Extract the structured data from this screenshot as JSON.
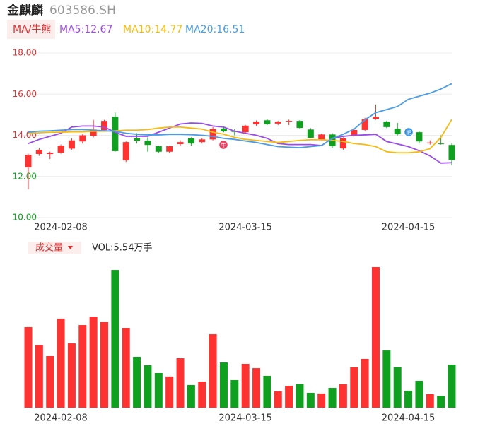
{
  "chart_data": {
    "type": "candlestick",
    "title": "金麒麟",
    "subtitle": "603586.SH",
    "indicator_label": "MA/牛熊",
    "volume_label": "成交量",
    "volume_text": "VOL:5.54万手",
    "annotations": [
      "牛",
      "熊"
    ],
    "up_color": "#ff3232",
    "down_color": "#10a020",
    "categories": [
      null,
      null,
      null,
      "2024-02-08",
      null,
      null,
      null,
      null,
      null,
      null,
      null,
      null,
      null,
      null,
      null,
      null,
      null,
      null,
      null,
      null,
      "2024-03-15",
      null,
      null,
      null,
      null,
      null,
      null,
      null,
      null,
      null,
      null,
      null,
      null,
      null,
      null,
      "2024-04-15",
      null,
      null,
      null,
      null
    ],
    "open": [
      12.44,
      13.09,
      13.09,
      13.16,
      13.35,
      13.7,
      13.98,
      14.25,
      14.9,
      12.78,
      13.85,
      13.74,
      13.47,
      13.2,
      13.57,
      13.85,
      13.67,
      13.8,
      14.33,
      14.2,
      14.15,
      14.53,
      14.73,
      14.57,
      14.68,
      14.7,
      14.28,
      13.8,
      14.04,
      13.36,
      13.98,
      14.26,
      14.8,
      14.67,
      14.32,
      14.3,
      14.15,
      13.62,
      13.6,
      13.53
    ],
    "close": [
      13.05,
      13.29,
      13.16,
      13.5,
      13.75,
      14.0,
      14.28,
      14.7,
      13.23,
      13.67,
      13.74,
      13.53,
      13.2,
      13.47,
      13.67,
      13.6,
      13.8,
      14.3,
      14.2,
      14.17,
      14.47,
      14.67,
      14.53,
      14.67,
      14.7,
      14.36,
      13.88,
      14.04,
      13.47,
      13.85,
      14.26,
      14.8,
      14.9,
      14.4,
      14.05,
      14.2,
      13.7,
      13.65,
      13.58,
      12.8
    ],
    "high": [
      13.1,
      13.4,
      13.2,
      13.55,
      13.85,
      14.05,
      14.75,
      14.75,
      15.1,
      13.7,
      14.1,
      13.9,
      13.5,
      13.5,
      13.75,
      13.9,
      13.85,
      14.4,
      14.45,
      14.3,
      14.5,
      14.72,
      14.78,
      14.7,
      14.76,
      14.74,
      14.35,
      14.08,
      14.1,
      13.9,
      14.3,
      14.85,
      15.5,
      14.7,
      14.6,
      14.35,
      14.2,
      13.75,
      14.0,
      13.6
    ],
    "low": [
      11.37,
      13.0,
      12.85,
      13.1,
      13.3,
      13.6,
      13.9,
      14.2,
      13.2,
      12.7,
      13.6,
      13.2,
      13.15,
      13.15,
      13.5,
      13.5,
      13.6,
      13.75,
      14.15,
      14.0,
      14.1,
      14.45,
      14.5,
      14.5,
      14.5,
      14.3,
      13.85,
      13.75,
      13.4,
      13.3,
      13.95,
      14.2,
      14.75,
      14.35,
      14.0,
      14.15,
      13.6,
      13.55,
      13.55,
      12.55
    ],
    "volume": [
      10.35,
      8.08,
      6.63,
      11.44,
      8.26,
      10.62,
      11.71,
      10.99,
      17.7,
      10.26,
      6.54,
      5.45,
      4.45,
      4.0,
      6.36,
      2.91,
      3.36,
      9.44,
      5.81,
      3.54,
      5.63,
      5.08,
      4.09,
      2.09,
      2.81,
      3.0,
      1.91,
      1.82,
      2.54,
      3.0,
      5.18,
      6.27,
      18.07,
      7.35,
      5.18,
      2.18,
      3.45,
      1.73,
      1.54,
      5.54
    ],
    "series": [
      {
        "name": "MA5:12.67",
        "color": "#9a4ce6",
        "values": [
          13.6,
          13.8,
          13.95,
          14.1,
          14.4,
          14.45,
          14.45,
          14.4,
          14.15,
          13.95,
          13.95,
          13.95,
          14.15,
          14.35,
          14.55,
          14.6,
          14.58,
          14.45,
          14.4,
          14.2,
          14.1,
          14.0,
          13.85,
          13.6,
          13.55,
          13.55,
          13.55,
          13.5,
          13.85,
          13.95,
          14.0,
          14.02,
          14.05,
          13.7,
          13.58,
          13.45,
          13.25,
          13.0,
          12.65,
          12.67
        ]
      },
      {
        "name": "MA10:14.77",
        "color": "#f5bb10",
        "values": [
          14.1,
          14.12,
          14.15,
          14.15,
          14.17,
          14.17,
          14.2,
          14.2,
          14.22,
          14.25,
          14.25,
          14.28,
          14.35,
          14.4,
          14.4,
          14.35,
          14.3,
          14.15,
          14.05,
          13.9,
          13.8,
          13.75,
          13.7,
          13.65,
          13.7,
          13.75,
          13.78,
          13.78,
          13.75,
          13.7,
          13.6,
          13.55,
          13.45,
          13.2,
          13.15,
          13.15,
          13.2,
          13.35,
          13.9,
          14.77
        ]
      },
      {
        "name": "MA20:16.51",
        "color": "#4a9de6",
        "values": [
          14.15,
          14.2,
          14.22,
          14.25,
          14.28,
          14.28,
          14.25,
          14.22,
          14.2,
          14.1,
          14.05,
          14.02,
          14.02,
          14.05,
          14.05,
          14.03,
          14.0,
          13.95,
          13.85,
          13.8,
          13.72,
          13.65,
          13.55,
          13.45,
          13.42,
          13.4,
          13.45,
          13.5,
          13.85,
          14.05,
          14.3,
          14.75,
          15.1,
          15.25,
          15.4,
          15.75,
          15.9,
          16.05,
          16.25,
          16.51
        ]
      }
    ],
    "ylim": [
      10,
      18
    ],
    "yticks": [
      {
        "value": 10,
        "label": "10.00"
      },
      {
        "value": 12,
        "label": "12.00"
      },
      {
        "value": 14,
        "label": "14.00"
      },
      {
        "value": 16,
        "label": "16.00"
      },
      {
        "value": 18,
        "label": "18.00"
      }
    ],
    "grid": true
  }
}
